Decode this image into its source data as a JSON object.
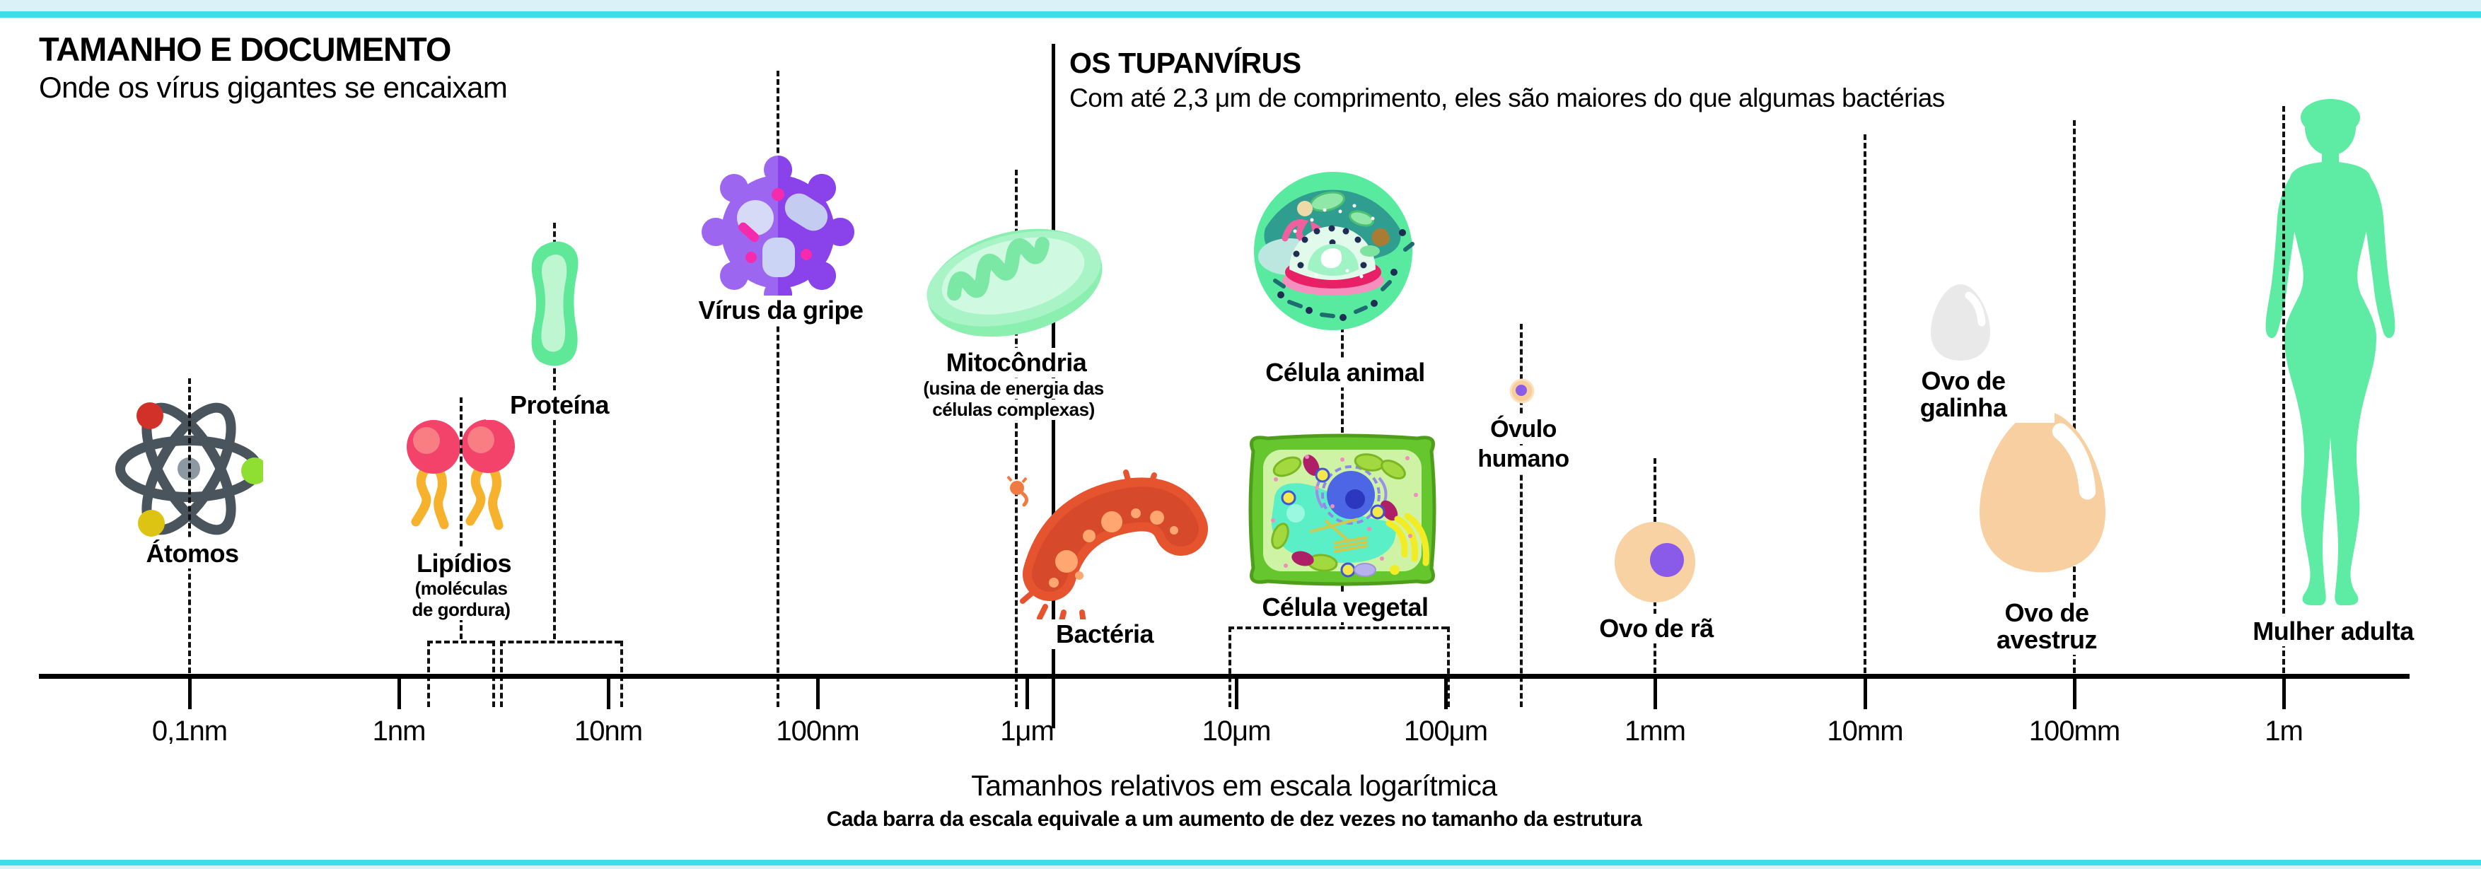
{
  "header": {
    "title": "TAMANHO E DOCUMENTO",
    "subtitle": "Onde os vírus gigantes se encaixam"
  },
  "right_header": {
    "title": "OS TUPANVÍRUS",
    "subtitle": "Com até 2,3 μm de comprimento, eles são maiores do que algumas bactérias"
  },
  "items": {
    "atomos": {
      "label": "Átomos"
    },
    "lipidios": {
      "label": "Lipídios",
      "sublabel_line1": "(moléculas",
      "sublabel_line2": "de gordura)"
    },
    "proteina": {
      "label": "Proteína"
    },
    "virus_gripe": {
      "label": "Vírus da gripe"
    },
    "mitocondria": {
      "label": "Mitocôndria",
      "sublabel_line1": "(usina de energia das",
      "sublabel_line2": "células complexas)"
    },
    "bacteria": {
      "label": "Bactéria"
    },
    "celula_animal": {
      "label": "Célula animal"
    },
    "celula_vegetal": {
      "label": "Célula vegetal"
    },
    "ovulo_humano": {
      "label_line1": "Óvulo",
      "label_line2": "humano"
    },
    "ovo_ra": {
      "label": "Ovo de rã"
    },
    "ovo_galinha": {
      "label": "Ovo de galinha"
    },
    "ovo_avestruz": {
      "label": "Ovo de avestruz"
    },
    "mulher_adulta": {
      "label": "Mulher adulta"
    }
  },
  "axis": {
    "tick_labels": [
      "0,1nm",
      "1nm",
      "10nm",
      "100nm",
      "1μm",
      "10μm",
      "100μm",
      "1mm",
      "10mm",
      "100mm",
      "1m"
    ],
    "caption": "Tamanhos relativos em escala logarítmica",
    "subcaption": "Cada barra da escala equivale a um aumento de dez vezes no tamanho da estrutura"
  },
  "colors": {
    "accent_cyan": "#3EDDE9",
    "accent_band": "#DBF1F8",
    "text": "#000000",
    "atom_orbit": "#49545C",
    "lipid_head": "#F4436A",
    "lipid_tail": "#F6B22C",
    "protein_green": "#5FE897",
    "flu_purple": "#8A42EA",
    "mitochondria_green": "#8BEFB0",
    "bacteria_orange": "#E5532F",
    "cell_green": "#58EBA0",
    "plant_wall_green": "#66C62E",
    "egg_peach": "#F8CFA0",
    "nucleus_purple": "#8A5BE8",
    "woman_green": "#5EEBA3"
  }
}
